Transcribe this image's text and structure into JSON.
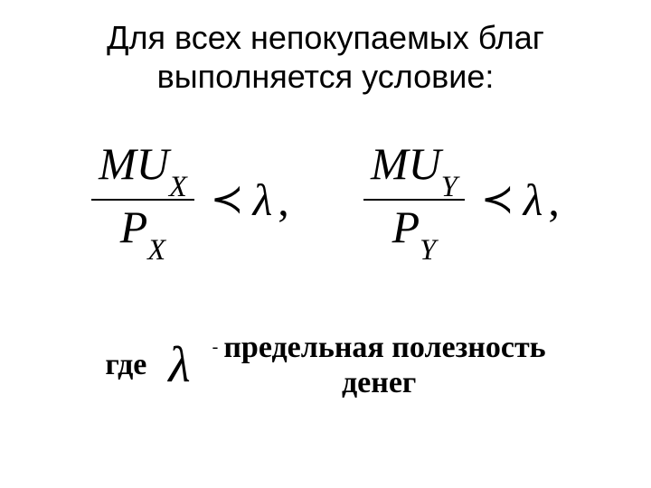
{
  "title": {
    "line1": "Для всех непокупаемых благ",
    "line2": "выполняется условие:"
  },
  "formulas": {
    "left": {
      "numerator_main": "MU",
      "numerator_sub": "X",
      "denominator_main": "P",
      "denominator_sub": "X",
      "relation": "≺",
      "rhs": "λ",
      "tail": ","
    },
    "right": {
      "numerator_main": "MU",
      "numerator_sub": "Y",
      "denominator_main": "P",
      "denominator_sub": "Y",
      "relation": "≺",
      "rhs": "λ",
      "tail": ","
    }
  },
  "where": {
    "label": "где",
    "symbol": "λ",
    "dash": "-",
    "desc_line1": "предельная полезность",
    "desc_line2": "денег"
  },
  "style": {
    "background": "#ffffff",
    "text_color": "#000000",
    "title_fontsize": 36,
    "formula_fontsize": 50,
    "where_fontsize": 34,
    "lambda_where_fontsize": 56,
    "font_family_title": "Arial",
    "font_family_math": "Times New Roman"
  }
}
